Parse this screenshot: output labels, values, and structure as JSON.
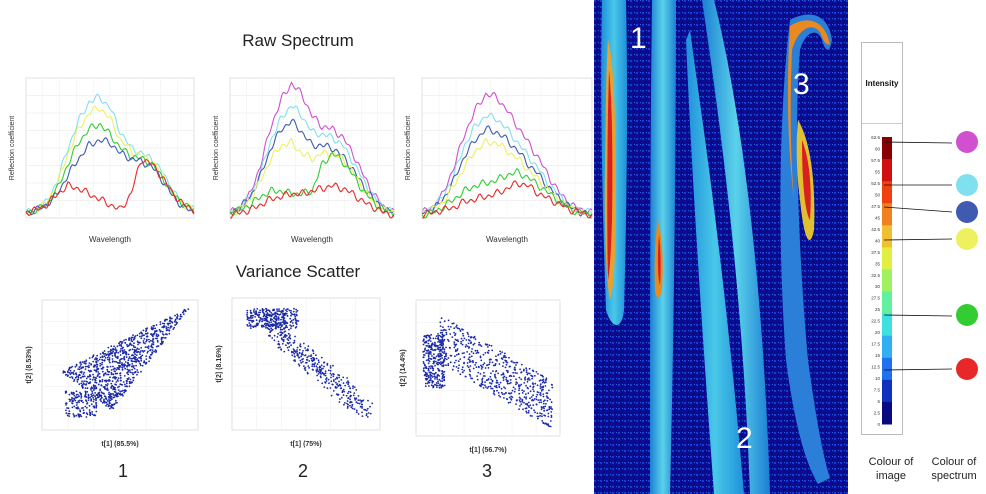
{
  "titles": {
    "raw": "Raw Spectrum",
    "variance": "Variance Scatter"
  },
  "spectrum_panels": [
    {
      "ylabel": "Reflection coefficient",
      "xlabel": "Wavelength"
    },
    {
      "ylabel": "Reflection coefficient",
      "xlabel": "Wavelength"
    },
    {
      "ylabel": "Reflection coefficient",
      "xlabel": "Wavelength"
    }
  ],
  "scatter_panels": [
    {
      "xlabel": "t[1] (85.5%)",
      "ylabel": "t[2] (8.53%)",
      "caption": "1"
    },
    {
      "xlabel": "t[1] (75%)",
      "ylabel": "t[2] (8.16%)",
      "caption": "2"
    },
    {
      "xlabel": "t[1] (56.7%)",
      "ylabel": "t[2] (14.4%)",
      "caption": "3"
    }
  ],
  "image_labels": [
    "1",
    "2",
    "3"
  ],
  "legend": {
    "title": "Intensity",
    "ticks": [
      "62.5",
      "60",
      "57.5",
      "55",
      "52.5",
      "50",
      "47.5",
      "45",
      "42.5",
      "40",
      "37.5",
      "35",
      "32.5",
      "30",
      "27.5",
      "25",
      "22.5",
      "20",
      "17.5",
      "15",
      "12.5",
      "10",
      "7.5",
      "5",
      "2.5",
      "0"
    ]
  },
  "footer": {
    "image": "Colour of image",
    "spectrum": "Colour of spectrum"
  },
  "spectrum_colours": [
    "#d050d0",
    "#7fe0f0",
    "#3f5ab0",
    "#eef060",
    "#33cc33",
    "#e82828"
  ],
  "chart_data": [
    {
      "type": "line",
      "xlabel": "Wavelength",
      "ylabel": "Reflection coefficient",
      "series": [
        {
          "color": "#7fe0f0",
          "values": [
            2,
            3,
            6,
            14,
            26,
            36,
            43,
            45,
            41,
            32,
            26,
            24,
            22,
            17,
            10,
            5,
            3
          ]
        },
        {
          "color": "#eef060",
          "values": [
            2,
            3,
            6,
            13,
            24,
            33,
            39,
            41,
            37,
            29,
            25,
            23,
            21,
            16,
            9,
            5,
            3
          ]
        },
        {
          "color": "#33cc33",
          "values": [
            2,
            3,
            5,
            11,
            20,
            28,
            33,
            35,
            31,
            26,
            23,
            22,
            20,
            15,
            9,
            5,
            3
          ]
        },
        {
          "color": "#3f5ab0",
          "values": [
            2,
            3,
            5,
            9,
            16,
            22,
            27,
            29,
            28,
            24,
            22,
            21,
            19,
            14,
            8,
            4,
            2
          ]
        },
        {
          "color": "#e82828",
          "values": [
            2,
            3,
            5,
            9,
            12,
            11,
            9,
            7,
            5,
            3,
            9,
            22,
            20,
            15,
            9,
            5,
            3
          ]
        }
      ]
    },
    {
      "type": "line",
      "xlabel": "Wavelength",
      "ylabel": "Reflection coefficient",
      "series": [
        {
          "color": "#d050d0",
          "values": [
            2,
            4,
            9,
            20,
            34,
            44,
            50,
            46,
            38,
            34,
            33,
            30,
            24,
            16,
            9,
            4,
            2
          ]
        },
        {
          "color": "#7fe0f0",
          "values": [
            2,
            4,
            8,
            17,
            29,
            37,
            42,
            38,
            32,
            31,
            30,
            27,
            21,
            14,
            8,
            4,
            2
          ]
        },
        {
          "color": "#3f5ab0",
          "values": [
            2,
            4,
            8,
            16,
            26,
            33,
            36,
            32,
            27,
            27,
            26,
            23,
            18,
            12,
            7,
            3,
            2
          ]
        },
        {
          "color": "#eef060",
          "values": [
            2,
            3,
            7,
            14,
            22,
            27,
            28,
            24,
            22,
            24,
            24,
            22,
            17,
            11,
            6,
            3,
            2
          ]
        },
        {
          "color": "#33cc33",
          "values": [
            2,
            3,
            5,
            8,
            10,
            10,
            9,
            9,
            10,
            20,
            24,
            21,
            16,
            10,
            6,
            3,
            2
          ]
        },
        {
          "color": "#e82828",
          "values": [
            1,
            2,
            3,
            5,
            7,
            8,
            9,
            9,
            10,
            11,
            12,
            11,
            9,
            6,
            4,
            2,
            1
          ]
        }
      ]
    },
    {
      "type": "line",
      "xlabel": "Wavelength",
      "ylabel": "Reflection coefficient",
      "series": [
        {
          "color": "#d050d0",
          "values": [
            2,
            4,
            9,
            19,
            31,
            40,
            46,
            45,
            40,
            34,
            28,
            22,
            15,
            9,
            5,
            3,
            2
          ]
        },
        {
          "color": "#7fe0f0",
          "values": [
            2,
            4,
            8,
            16,
            27,
            34,
            38,
            37,
            33,
            28,
            23,
            18,
            12,
            8,
            4,
            3,
            2
          ]
        },
        {
          "color": "#3f5ab0",
          "values": [
            2,
            3,
            7,
            14,
            23,
            29,
            33,
            32,
            29,
            25,
            20,
            16,
            11,
            7,
            4,
            2,
            1
          ]
        },
        {
          "color": "#eef060",
          "values": [
            2,
            3,
            6,
            12,
            19,
            25,
            28,
            28,
            25,
            22,
            18,
            14,
            10,
            6,
            4,
            2,
            1
          ]
        },
        {
          "color": "#33cc33",
          "values": [
            1,
            2,
            4,
            7,
            10,
            12,
            13,
            14,
            16,
            17,
            15,
            12,
            9,
            6,
            3,
            2,
            1
          ]
        },
        {
          "color": "#e82828",
          "values": [
            1,
            2,
            3,
            4,
            6,
            7,
            8,
            9,
            11,
            13,
            12,
            9,
            7,
            5,
            3,
            2,
            1
          ]
        }
      ]
    }
  ]
}
